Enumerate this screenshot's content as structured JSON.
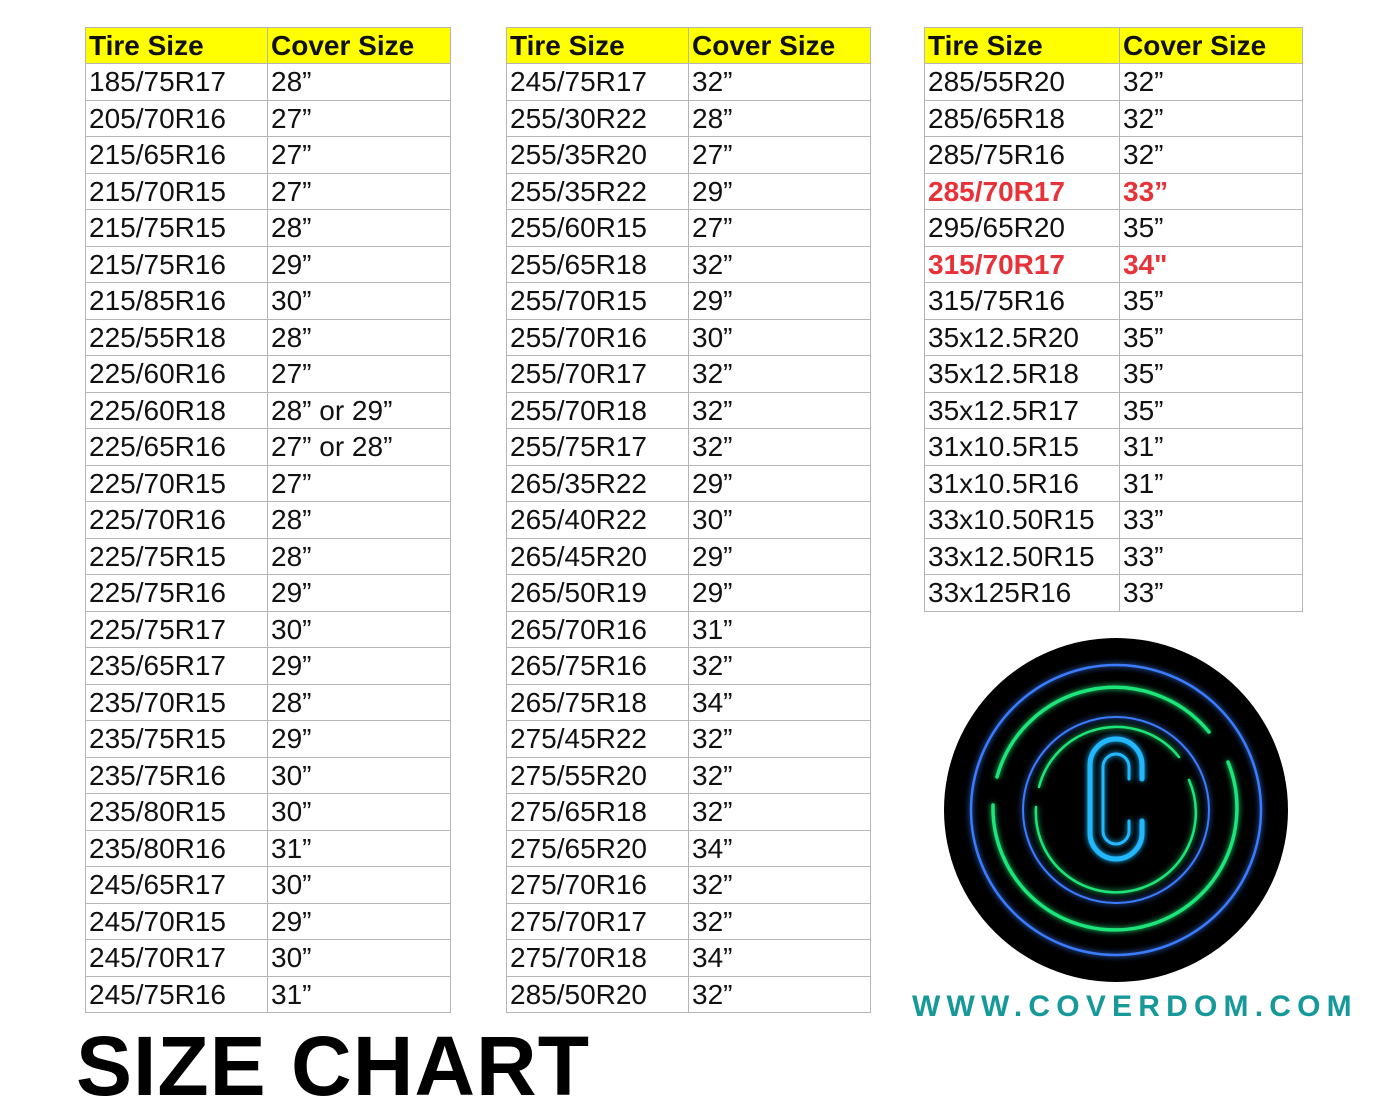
{
  "title": "SIZE CHART",
  "website": "WWW.COVERDOM.COM",
  "logo": {
    "letter": "C",
    "colors": {
      "background": "#000000",
      "outer_ring": "#3a7bff",
      "green_arcs": "#1ee67a",
      "letter": "#22b8ff"
    }
  },
  "colors": {
    "header_bg": "#ffff00",
    "highlight_text": "#e8323a",
    "url_text": "#17999a"
  },
  "tables": [
    {
      "headers": [
        "Tire Size",
        "Cover Size"
      ],
      "rows": [
        [
          "185/75R17",
          "28”"
        ],
        [
          "205/70R16",
          "27”"
        ],
        [
          "215/65R16",
          "27”"
        ],
        [
          "215/70R15",
          "27”"
        ],
        [
          "215/75R15",
          "28”"
        ],
        [
          "215/75R16",
          "29”"
        ],
        [
          "215/85R16",
          "30”"
        ],
        [
          "225/55R18",
          "28”"
        ],
        [
          "225/60R16",
          "27”"
        ],
        [
          "225/60R18",
          "28” or 29”"
        ],
        [
          "225/65R16",
          "27” or 28”"
        ],
        [
          "225/70R15",
          "27”"
        ],
        [
          "225/70R16",
          "28”"
        ],
        [
          "225/75R15",
          "28”"
        ],
        [
          "225/75R16",
          "29”"
        ],
        [
          "225/75R17",
          "30”"
        ],
        [
          "235/65R17",
          "29”"
        ],
        [
          "235/70R15",
          "28”"
        ],
        [
          "235/75R15",
          "29”"
        ],
        [
          "235/75R16",
          "30”"
        ],
        [
          "235/80R15",
          "30”"
        ],
        [
          "235/80R16",
          "31”"
        ],
        [
          "245/65R17",
          "30”"
        ],
        [
          "245/70R15",
          "29”"
        ],
        [
          "245/70R17",
          "30”"
        ],
        [
          "245/75R16",
          "31”"
        ]
      ],
      "highlighted_rows": []
    },
    {
      "headers": [
        "Tire Size",
        "Cover Size"
      ],
      "rows": [
        [
          "245/75R17",
          "32”"
        ],
        [
          "255/30R22",
          "28”"
        ],
        [
          "255/35R20",
          "27”"
        ],
        [
          "255/35R22",
          "29”"
        ],
        [
          "255/60R15",
          "27”"
        ],
        [
          "255/65R18",
          "32”"
        ],
        [
          "255/70R15",
          "29”"
        ],
        [
          "255/70R16",
          "30”"
        ],
        [
          "255/70R17",
          "32”"
        ],
        [
          "255/70R18",
          "32”"
        ],
        [
          "255/75R17",
          "32”"
        ],
        [
          "265/35R22",
          "29”"
        ],
        [
          "265/40R22",
          "30”"
        ],
        [
          "265/45R20",
          "29”"
        ],
        [
          "265/50R19",
          "29”"
        ],
        [
          "265/70R16",
          "31”"
        ],
        [
          "265/75R16",
          "32”"
        ],
        [
          "265/75R18",
          "34”"
        ],
        [
          "275/45R22",
          "32”"
        ],
        [
          "275/55R20",
          "32”"
        ],
        [
          "275/65R18",
          "32”"
        ],
        [
          "275/65R20",
          "34”"
        ],
        [
          "275/70R16",
          "32”"
        ],
        [
          "275/70R17",
          "32”"
        ],
        [
          "275/70R18",
          "34”"
        ],
        [
          "285/50R20",
          "32”"
        ]
      ],
      "highlighted_rows": []
    },
    {
      "headers": [
        "Tire Size",
        "Cover Size"
      ],
      "rows": [
        [
          "285/55R20",
          "32”"
        ],
        [
          "285/65R18",
          "32”"
        ],
        [
          "285/75R16",
          "32”"
        ],
        [
          "285/70R17",
          "33”"
        ],
        [
          "295/65R20",
          "35”"
        ],
        [
          "315/70R17",
          "34\""
        ],
        [
          "315/75R16",
          "35”"
        ],
        [
          "35x12.5R20",
          "35”"
        ],
        [
          "35x12.5R18",
          "35”"
        ],
        [
          "35x12.5R17",
          "35”"
        ],
        [
          "31x10.5R15",
          "31”"
        ],
        [
          "31x10.5R16",
          "31”"
        ],
        [
          "33x10.50R15",
          "33”"
        ],
        [
          "33x12.50R15",
          "33”"
        ],
        [
          "33x125R16",
          "33”"
        ]
      ],
      "highlighted_rows": [
        3,
        5
      ]
    }
  ]
}
